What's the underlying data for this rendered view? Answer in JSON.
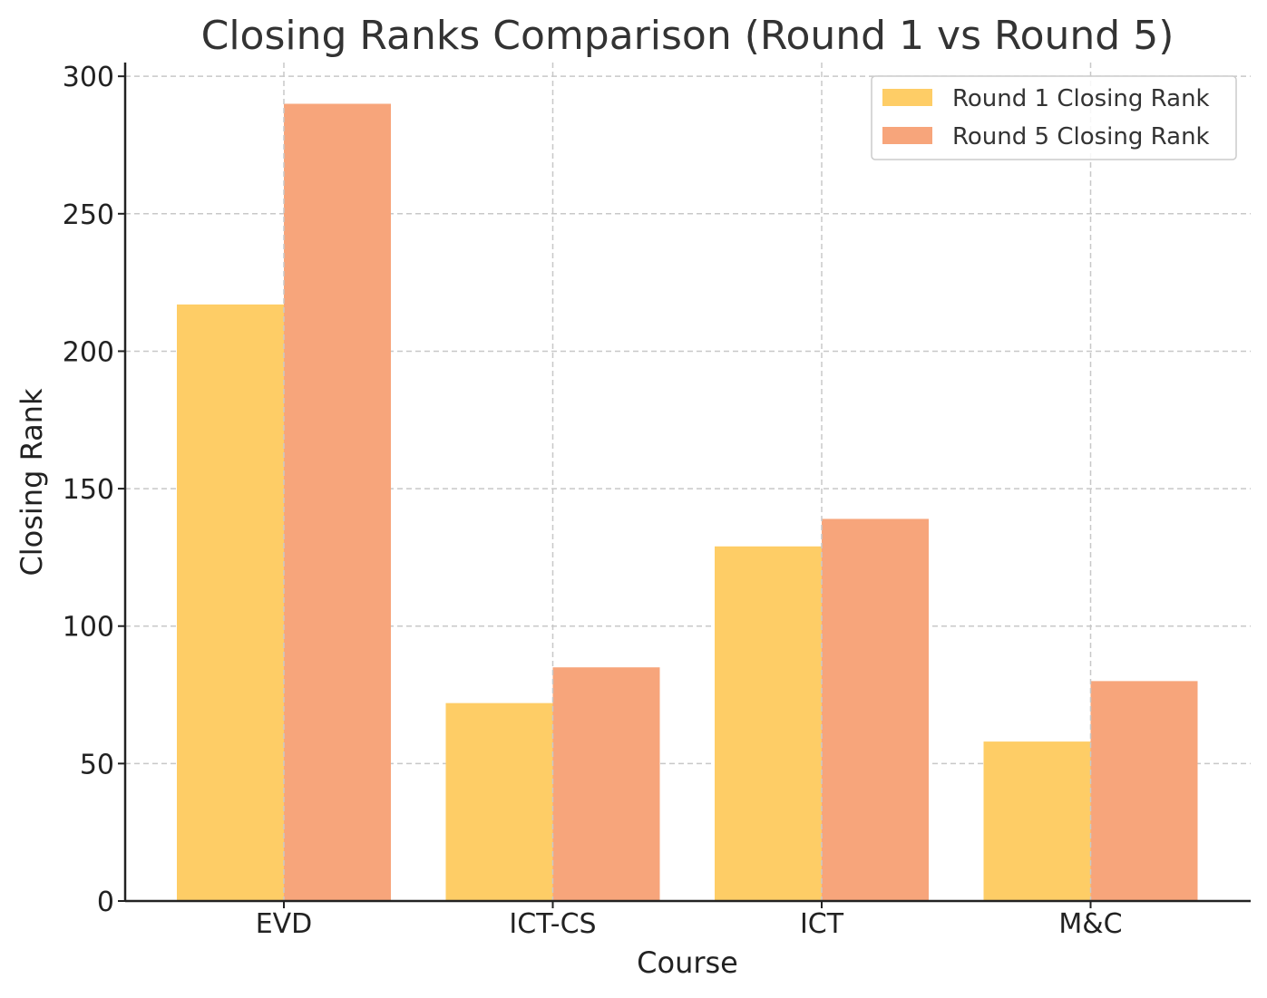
{
  "chart_data": {
    "type": "bar",
    "title": "Closing Ranks Comparison (Round 1 vs Round 5)",
    "xlabel": "Course",
    "ylabel": "Closing Rank",
    "categories": [
      "EVD",
      "ICT-CS",
      "ICT",
      "M&C"
    ],
    "series": [
      {
        "name": "Round 1 Closing Rank",
        "values": [
          217,
          72,
          129,
          58
        ],
        "color": "#FECD66"
      },
      {
        "name": "Round 5 Closing Rank",
        "values": [
          290,
          85,
          139,
          80
        ],
        "color": "#F7A57B"
      }
    ],
    "ylim": [
      0,
      305
    ],
    "yticks": [
      0,
      50,
      100,
      150,
      200,
      250,
      300
    ],
    "grid": true,
    "legend_position": "top-right"
  }
}
